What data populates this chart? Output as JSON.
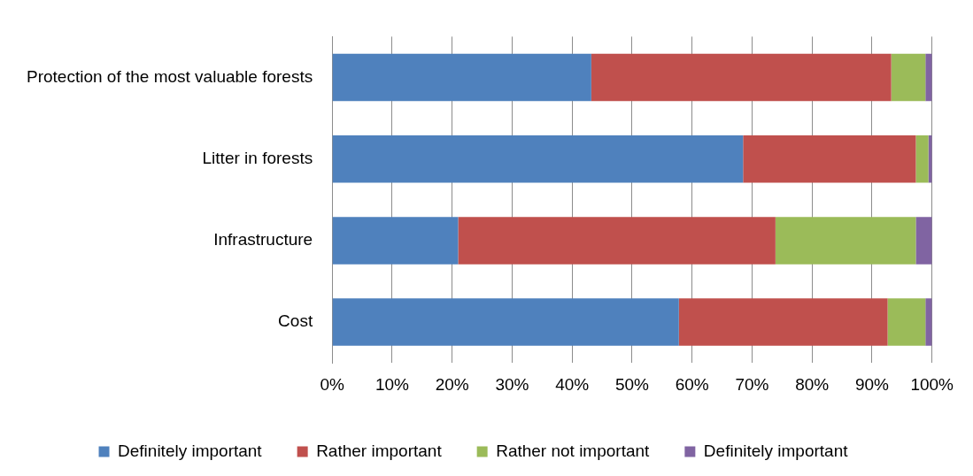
{
  "chart_data": {
    "type": "bar",
    "orientation": "horizontal",
    "stacked": true,
    "categories": [
      "Protection of the most valuable forests",
      "Litter in forests",
      "Infrastructure",
      "Cost"
    ],
    "series": [
      {
        "name": "Definitely important",
        "color": "#4f81bd",
        "values": [
          43.2,
          68.5,
          21.0,
          57.8
        ]
      },
      {
        "name": "Rather important",
        "color": "#c0504d",
        "values": [
          50.0,
          28.8,
          52.9,
          34.8
        ]
      },
      {
        "name": "Rather not important",
        "color": "#9bbb59",
        "values": [
          5.7,
          2.1,
          23.4,
          6.3
        ]
      },
      {
        "name": "Definitely important",
        "color": "#8064a2",
        "values": [
          1.1,
          0.6,
          2.7,
          1.1
        ]
      }
    ],
    "xlim": [
      0,
      100
    ],
    "xticks": [
      {
        "value": 0,
        "label": "0%"
      },
      {
        "value": 10,
        "label": "10%"
      },
      {
        "value": 20,
        "label": "20%"
      },
      {
        "value": 30,
        "label": "30%"
      },
      {
        "value": 40,
        "label": "40%"
      },
      {
        "value": 50,
        "label": "50%"
      },
      {
        "value": 60,
        "label": "60%"
      },
      {
        "value": 70,
        "label": "70%"
      },
      {
        "value": 80,
        "label": "80%"
      },
      {
        "value": 90,
        "label": "90%"
      },
      {
        "value": 100,
        "label": "100%"
      }
    ],
    "grid": "x",
    "legend": "bottom"
  }
}
